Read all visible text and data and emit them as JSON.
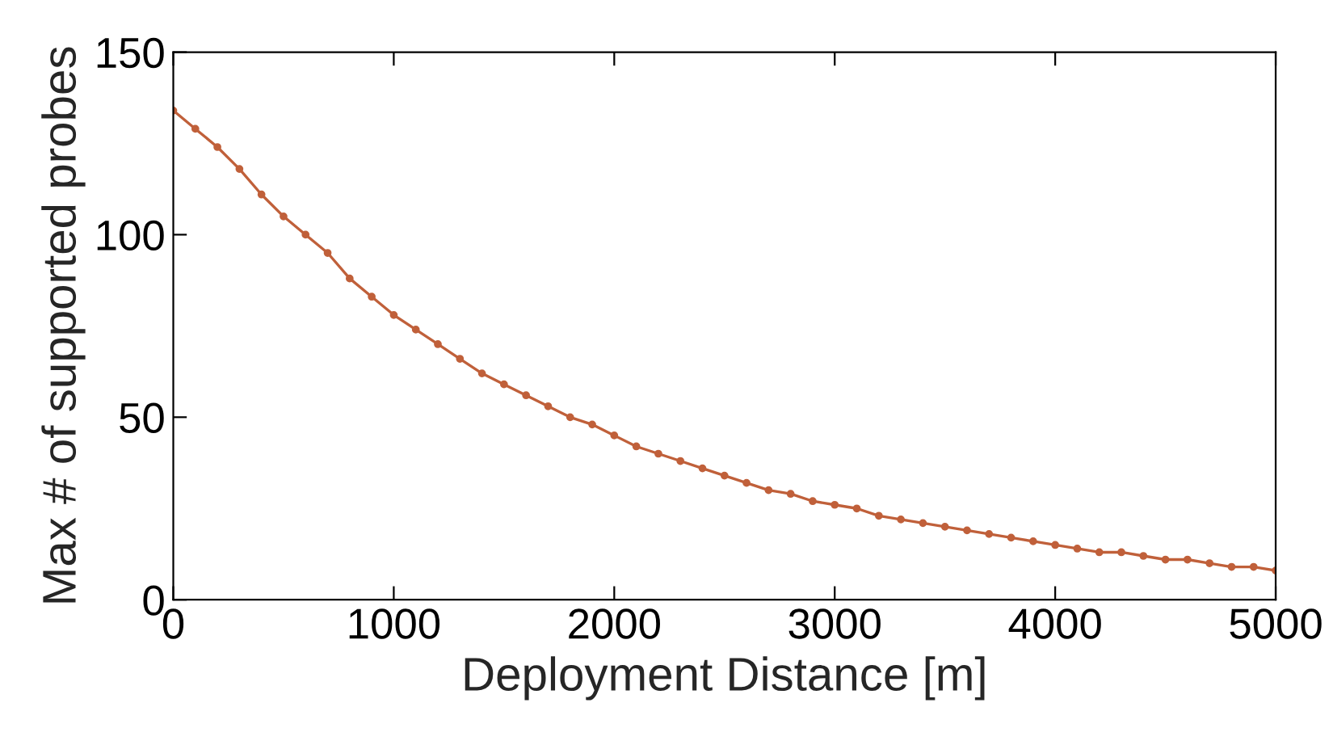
{
  "chart_data": {
    "type": "line",
    "xlabel": "Deployment Distance [m]",
    "ylabel": "Max # of supported probes",
    "x": [
      0,
      100,
      200,
      300,
      400,
      500,
      600,
      700,
      800,
      900,
      1000,
      1100,
      1200,
      1300,
      1400,
      1500,
      1600,
      1700,
      1800,
      1900,
      2000,
      2100,
      2200,
      2300,
      2400,
      2500,
      2600,
      2700,
      2800,
      2900,
      3000,
      3100,
      3200,
      3300,
      3400,
      3500,
      3600,
      3700,
      3800,
      3900,
      4000,
      4100,
      4200,
      4300,
      4400,
      4500,
      4600,
      4700,
      4800,
      4900,
      5000
    ],
    "series": [
      {
        "color": "#c0603a",
        "values": [
          134,
          129,
          124,
          118,
          111,
          105,
          100,
          95,
          88,
          83,
          78,
          74,
          70,
          66,
          62,
          59,
          56,
          53,
          50,
          48,
          45,
          42,
          40,
          38,
          36,
          34,
          32,
          30,
          29,
          27,
          26,
          25,
          23,
          22,
          21,
          20,
          19,
          18,
          17,
          16,
          15,
          14,
          13,
          13,
          12,
          11,
          11,
          10,
          9,
          9,
          8
        ]
      }
    ],
    "xlim": [
      0,
      5000
    ],
    "ylim": [
      0,
      150
    ],
    "xticks": [
      0,
      1000,
      2000,
      3000,
      4000,
      5000
    ],
    "yticks": [
      0,
      50,
      100,
      150
    ],
    "grid": false,
    "marker": "circle",
    "line_style": "solid"
  }
}
